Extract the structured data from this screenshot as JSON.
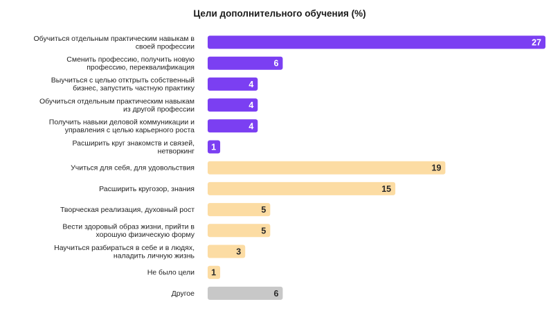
{
  "chart_data": {
    "type": "bar",
    "orientation": "horizontal",
    "title": "Цели дополнительного обучения (%)",
    "xlabel": "",
    "ylabel": "",
    "xlim": [
      0,
      27
    ],
    "grid": false,
    "legend": "none",
    "colors": {
      "purple": "#7b3ff2",
      "peach": "#fcdca3",
      "gray": "#c8c8c8",
      "label_on_purple": "#ffffff",
      "label_on_other": "#2a2a2a"
    },
    "categories": [
      [
        "Обучиться отдельным практическим навыкам в",
        "своей профессии"
      ],
      [
        "Сменить профессию, получить новую",
        "профессию, переквалификация"
      ],
      [
        "Выучиться с целью отктрыть собственный",
        "бизнес, запустить частную практику"
      ],
      [
        "Обучиться отдельным практическим навыкам",
        "из другой профессии"
      ],
      [
        "Получить навыки деловой коммуникации и",
        "управления с целью карьерного роста"
      ],
      [
        "Расширить круг знакомств и связей,",
        "нетворкинг"
      ],
      [
        "Учиться для себя, для удовольствия"
      ],
      [
        "Расширить кругозор, знания"
      ],
      [
        "Творческая реализация, духовный рост"
      ],
      [
        "Вести здоровый образ жизни, прийти в",
        "хорошую физическую форму"
      ],
      [
        "Научиться разбираться в себе и в людях,",
        "наладить личную жизнь"
      ],
      [
        "Не было цели"
      ],
      [
        "Другое"
      ]
    ],
    "values": [
      27,
      6,
      4,
      4,
      4,
      1,
      19,
      15,
      5,
      5,
      3,
      1,
      6
    ],
    "bar_colors": [
      "purple",
      "purple",
      "purple",
      "purple",
      "purple",
      "purple",
      "peach",
      "peach",
      "peach",
      "peach",
      "peach",
      "peach",
      "gray"
    ]
  }
}
